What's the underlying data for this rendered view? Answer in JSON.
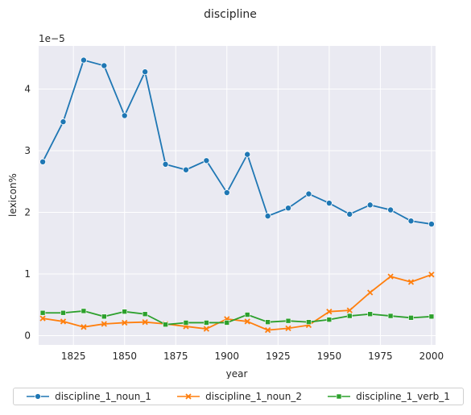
{
  "chart_data": {
    "type": "line",
    "title": "discipline",
    "xlabel": "year",
    "ylabel": "lexicon%",
    "y_scale_label": "1e−5",
    "x": [
      1810,
      1820,
      1830,
      1840,
      1850,
      1860,
      1870,
      1880,
      1890,
      1900,
      1910,
      1920,
      1930,
      1940,
      1950,
      1960,
      1970,
      1980,
      1990,
      2000
    ],
    "xlim": [
      1808,
      2002
    ],
    "ylim": [
      -0.15,
      4.7
    ],
    "x_ticks": [
      "1825",
      "1850",
      "1875",
      "1900",
      "1925",
      "1950",
      "1975",
      "2000"
    ],
    "x_tick_values": [
      1825,
      1850,
      1875,
      1900,
      1925,
      1950,
      1975,
      2000
    ],
    "y_ticks": [
      "0",
      "1",
      "2",
      "3",
      "4"
    ],
    "y_tick_values": [
      0,
      1,
      2,
      3,
      4
    ],
    "grid": true,
    "legend_position": "bottom",
    "series": [
      {
        "name": "discipline_1_noun_1",
        "color": "#1f77b4",
        "marker": "circle",
        "values": [
          2.82,
          3.47,
          4.47,
          4.38,
          3.57,
          4.28,
          2.78,
          2.69,
          2.84,
          2.32,
          2.94,
          1.94,
          2.07,
          2.3,
          2.15,
          1.97,
          2.12,
          2.04,
          1.86,
          1.81
        ]
      },
      {
        "name": "discipline_1_noun_2",
        "color": "#ff7f0e",
        "marker": "x",
        "values": [
          0.28,
          0.23,
          0.14,
          0.19,
          0.21,
          0.22,
          0.19,
          0.15,
          0.11,
          0.27,
          0.23,
          0.09,
          0.12,
          0.17,
          0.39,
          0.41,
          0.7,
          0.96,
          0.87,
          0.99
        ]
      },
      {
        "name": "discipline_1_verb_1",
        "color": "#2ca02c",
        "marker": "square",
        "values": [
          0.37,
          0.37,
          0.4,
          0.31,
          0.39,
          0.35,
          0.18,
          0.21,
          0.21,
          0.21,
          0.34,
          0.22,
          0.24,
          0.22,
          0.26,
          0.32,
          0.35,
          0.32,
          0.29,
          0.31
        ]
      }
    ]
  }
}
